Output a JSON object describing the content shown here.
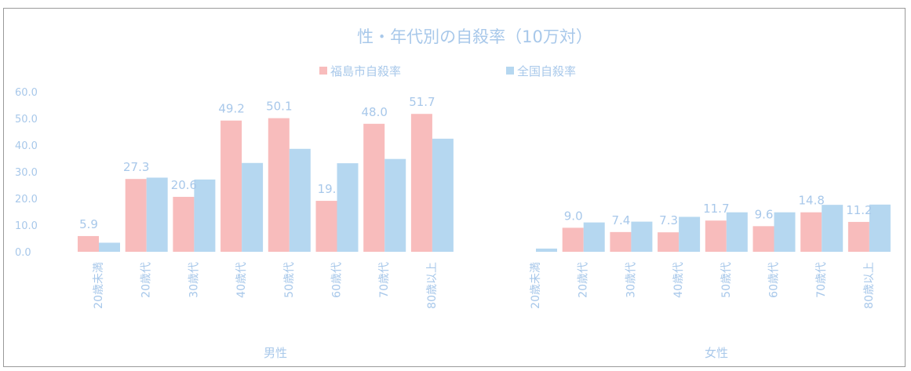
{
  "chart_data": {
    "type": "bar",
    "title": "性・年代別の自殺率（10万対）",
    "legend": {
      "position": "top",
      "items": [
        {
          "name": "福島市自殺率",
          "color": "#f8bcbc"
        },
        {
          "name": "全国自殺率",
          "color": "#b5d7f0"
        }
      ]
    },
    "ylim": [
      0,
      60
    ],
    "yticks": [
      "60.0",
      "50.0",
      "40.0",
      "30.0",
      "20.0",
      "10.0",
      "0.0"
    ],
    "grid": false,
    "groups": [
      {
        "label": "男性",
        "categories": [
          "20歳未満",
          "20歳代",
          "30歳代",
          "40歳代",
          "50歳代",
          "60歳代",
          "70歳代",
          "80歳以上"
        ],
        "series": [
          {
            "name": "福島市自殺率",
            "values": [
              5.9,
              27.3,
              20.6,
              49.2,
              50.1,
              19.1,
              48.0,
              51.7
            ],
            "data_labels": [
              "5.9",
              "27.3",
              "20.6",
              "49.2",
              "50.1",
              "19.",
              "48.0",
              "51.7"
            ]
          },
          {
            "name": "全国自殺率",
            "values": [
              3.4,
              27.8,
              27.1,
              33.3,
              38.6,
              33.2,
              34.8,
              42.4
            ]
          }
        ]
      },
      {
        "label": "女性",
        "categories": [
          "20歳未満",
          "20歳代",
          "30歳代",
          "40歳代",
          "50歳代",
          "60歳代",
          "70歳代",
          "80歳以上"
        ],
        "series": [
          {
            "name": "福島市自殺率",
            "values": [
              0,
              9.0,
              7.4,
              7.3,
              11.7,
              9.6,
              14.8,
              11.2
            ],
            "data_labels": [
              "",
              "9.0",
              "7.4",
              "7.3",
              "11.7",
              "9.6",
              "14.8",
              "11.2"
            ]
          },
          {
            "name": "全国自殺率",
            "values": [
              1.2,
              11.0,
              11.3,
              13.1,
              14.8,
              14.8,
              17.6,
              17.7
            ]
          }
        ]
      }
    ]
  },
  "colors": {
    "fukushima": "#f8bcbc",
    "national": "#b5d7f0",
    "text": "#a8c8ea"
  }
}
